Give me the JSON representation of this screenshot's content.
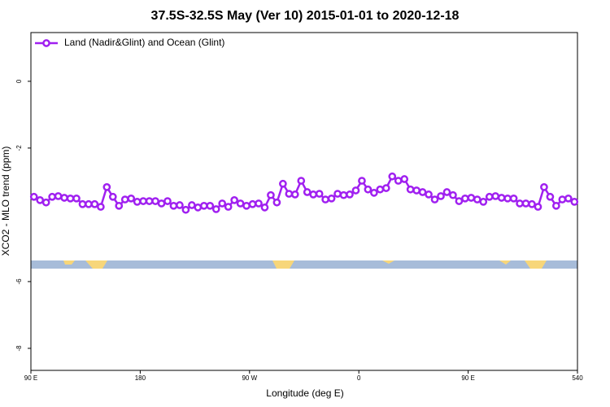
{
  "chart_data": {
    "type": "line",
    "title": "37.5S-32.5S May (Ver 10)   2015-01-01 to 2020-12-18",
    "x_label": "Longitude (deg E)",
    "y_label": "XCO2 - MLO trend (ppm)",
    "xlim": [
      90,
      540
    ],
    "ylim": [
      -8.66,
      1.46
    ],
    "xticks": [
      {
        "value": 90,
        "label": "90 E"
      },
      180,
      {
        "value": 270,
        "label": "90 W"
      },
      {
        "value": 360,
        "label": "0"
      },
      {
        "value": 450,
        "label": "90 E"
      },
      540
    ],
    "yticks": [
      0,
      -2,
      -6,
      -8
    ],
    "legend": "top-left",
    "x": [
      92.5,
      97.5,
      102.5,
      107.5,
      112.5,
      117.5,
      122.5,
      127.5,
      132.5,
      137.5,
      142.5,
      147.5,
      152.5,
      157.5,
      162.5,
      167.5,
      172.5,
      177.5,
      182.5,
      187.5,
      192.5,
      197.5,
      202.5,
      207.5,
      212.5,
      217.5,
      222.5,
      227.5,
      232.5,
      237.5,
      242.5,
      247.5,
      252.5,
      257.5,
      262.5,
      267.5,
      272.5,
      277.5,
      282.5,
      287.5,
      292.5,
      297.5,
      302.5,
      307.5,
      312.5,
      317.5,
      322.5,
      327.5,
      332.5,
      337.5,
      342.5,
      347.5,
      352.5,
      357.5,
      362.5,
      367.5,
      372.5,
      377.5,
      382.5,
      387.5,
      392.5,
      397.5,
      402.5,
      407.5,
      412.5,
      417.5,
      422.5,
      427.5,
      432.5,
      437.5,
      442.5,
      447.5,
      452.5,
      457.5,
      462.5,
      467.5,
      472.5,
      477.5,
      482.5,
      487.5,
      492.5,
      497.5,
      502.5,
      507.5,
      512.5,
      517.5,
      522.5,
      527.5,
      532.5,
      537.5
    ],
    "series": [
      {
        "name": "Land (Nadir&Glint) and Ocean (Glint)",
        "color": "#a020f0",
        "values": [
          -3.46,
          -3.56,
          -3.63,
          -3.46,
          -3.44,
          -3.49,
          -3.51,
          -3.51,
          -3.68,
          -3.68,
          -3.68,
          -3.76,
          -3.17,
          -3.46,
          -3.73,
          -3.54,
          -3.51,
          -3.61,
          -3.59,
          -3.59,
          -3.59,
          -3.66,
          -3.59,
          -3.73,
          -3.71,
          -3.85,
          -3.71,
          -3.78,
          -3.73,
          -3.73,
          -3.83,
          -3.66,
          -3.76,
          -3.56,
          -3.66,
          -3.73,
          -3.68,
          -3.66,
          -3.78,
          -3.41,
          -3.63,
          -3.07,
          -3.37,
          -3.39,
          -2.98,
          -3.32,
          -3.39,
          -3.37,
          -3.54,
          -3.51,
          -3.37,
          -3.41,
          -3.39,
          -3.27,
          -2.98,
          -3.24,
          -3.34,
          -3.24,
          -3.2,
          -2.85,
          -2.98,
          -2.93,
          -3.24,
          -3.27,
          -3.32,
          -3.39,
          -3.54,
          -3.44,
          -3.32,
          -3.41,
          -3.59,
          -3.51,
          -3.49,
          -3.54,
          -3.61,
          -3.46,
          -3.44,
          -3.49,
          -3.51,
          -3.51,
          -3.66,
          -3.66,
          -3.68,
          -3.76,
          -3.17,
          -3.46,
          -3.73,
          -3.54,
          -3.51,
          -3.61
        ]
      }
    ]
  }
}
